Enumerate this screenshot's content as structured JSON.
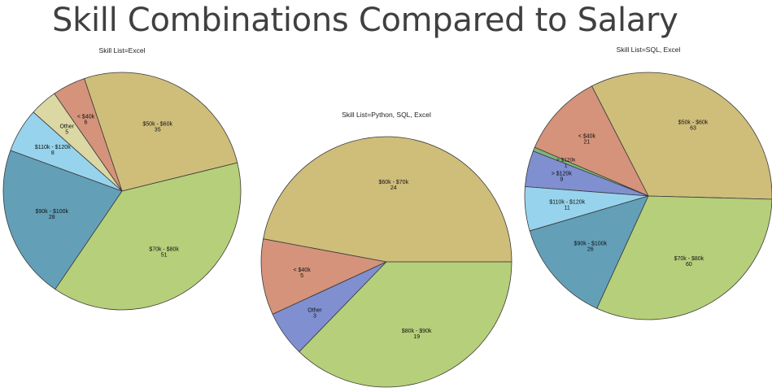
{
  "page": {
    "title": "Skill Combinations Compared to Salary"
  },
  "chart_data": [
    {
      "type": "pie",
      "title": "Skill List=Excel",
      "slices": [
        {
          "label": "$50k - $60k",
          "value": 35,
          "color": "#cfbd7a"
        },
        {
          "label": "< $40k",
          "value": 6,
          "color": "#d4937a"
        },
        {
          "label": "Other",
          "value": 5,
          "color": "#dcd8a4"
        },
        {
          "label": "$110k - $120k",
          "value": 8,
          "color": "#97d3ec"
        },
        {
          "label": "$90k - $100k",
          "value": 28,
          "color": "#649fb8"
        },
        {
          "label": "$70k - $80k",
          "value": 51,
          "color": "#b6cf7a"
        }
      ]
    },
    {
      "type": "pie",
      "title": "Skill List=Python, SQL, Excel",
      "slices": [
        {
          "label": "$60k - $70k",
          "value": 24,
          "color": "#cfbd7a"
        },
        {
          "label": "< $40k",
          "value": 5,
          "color": "#d4937a"
        },
        {
          "label": "Other",
          "value": 3,
          "color": "#7f8fd0"
        },
        {
          "label": "$80k - $90k",
          "value": 19,
          "color": "#b6cf7a"
        }
      ]
    },
    {
      "type": "pie",
      "title": "Skill List=SQL, Excel",
      "slices": [
        {
          "label": "$50k - $60k",
          "value": 63,
          "color": "#cfbd7a"
        },
        {
          "label": "< $40k",
          "value": 21,
          "color": "#d4937a"
        },
        {
          "label": "> $120k",
          "value": 1,
          "color": "#7fb77a"
        },
        {
          "label": "> $120k",
          "value": 9,
          "color": "#7f8fd0"
        },
        {
          "label": "$110k - $120k",
          "value": 11,
          "color": "#97d3ec"
        },
        {
          "label": "$90k - $100k",
          "value": 26,
          "color": "#649fb8"
        },
        {
          "label": "$70k - $80k",
          "value": 60,
          "color": "#b6cf7a"
        }
      ]
    }
  ]
}
